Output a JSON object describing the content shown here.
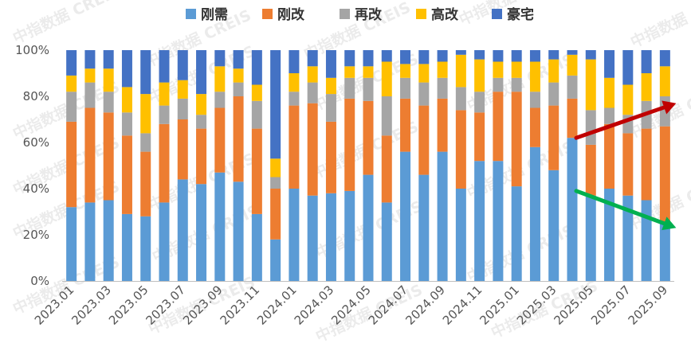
{
  "watermark": "中指数据 CREIS",
  "chart_data": {
    "type": "bar",
    "stacked": true,
    "normalized": true,
    "legend_position": "top",
    "grid": false,
    "ylim": [
      0,
      100
    ],
    "ytick_labels": [
      "0%",
      "20%",
      "40%",
      "60%",
      "80%",
      "100%"
    ],
    "categories": [
      "2023.01",
      "2023.02",
      "2023.03",
      "2023.04",
      "2023.05",
      "2023.06",
      "2023.07",
      "2023.08",
      "2023.09",
      "2023.10",
      "2023.11",
      "2023.12",
      "2024.01",
      "2024.02",
      "2024.03",
      "2024.04",
      "2024.05",
      "2024.06",
      "2024.07",
      "2024.08",
      "2024.09",
      "2024.10",
      "2024.11",
      "2024.12",
      "2025.01",
      "2025.02",
      "2025.03",
      "2025.04",
      "2025.05",
      "2025.06",
      "2025.07",
      "2025.08",
      "2025.09"
    ],
    "xtick_labels": [
      "2023.01",
      "2023.03",
      "2023.05",
      "2023.07",
      "2023.09",
      "2023.11",
      "2024.01",
      "2024.03",
      "2024.05",
      "2024.07",
      "2024.09",
      "2024.11",
      "2025.01",
      "2025.03",
      "2025.05",
      "2025.07",
      "2025.09"
    ],
    "series": [
      {
        "name": "刚需",
        "color": "#5b9bd5",
        "values": [
          32,
          34,
          35,
          29,
          28,
          34,
          44,
          42,
          47,
          43,
          29,
          18,
          40,
          37,
          38,
          39,
          46,
          34,
          56,
          46,
          56,
          40,
          52,
          52,
          41,
          58,
          48,
          62,
          37,
          40,
          37,
          35,
          25
        ]
      },
      {
        "name": "刚改",
        "color": "#ed7d31",
        "values": [
          37,
          41,
          38,
          34,
          28,
          34,
          26,
          24,
          28,
          37,
          37,
          22,
          36,
          40,
          31,
          40,
          32,
          29,
          23,
          30,
          23,
          34,
          21,
          30,
          41,
          17,
          28,
          17,
          22,
          28,
          27,
          31,
          42
        ]
      },
      {
        "name": "再改",
        "color": "#a5a5a5",
        "values": [
          13,
          11,
          9,
          10,
          8,
          8,
          9,
          6,
          7,
          6,
          12,
          5,
          6,
          9,
          12,
          9,
          10,
          17,
          9,
          10,
          9,
          10,
          9,
          6,
          6,
          7,
          10,
          10,
          15,
          7,
          8,
          12,
          13
        ]
      },
      {
        "name": "高改",
        "color": "#ffc000",
        "values": [
          7,
          6,
          10,
          11,
          17,
          10,
          8,
          9,
          11,
          6,
          7,
          8,
          8,
          7,
          7,
          5,
          5,
          15,
          6,
          8,
          7,
          14,
          14,
          7,
          7,
          13,
          10,
          9,
          22,
          13,
          13,
          12,
          13
        ]
      },
      {
        "name": "豪宅",
        "color": "#4472c4",
        "values": [
          11,
          8,
          8,
          16,
          19,
          14,
          13,
          19,
          7,
          8,
          15,
          47,
          10,
          7,
          12,
          7,
          7,
          5,
          6,
          6,
          5,
          2,
          4,
          5,
          5,
          5,
          4,
          2,
          4,
          12,
          15,
          10,
          7
        ]
      }
    ],
    "annotations": [
      {
        "type": "arrow",
        "color": "#c00000",
        "from": {
          "x": "2025.04",
          "y": 62
        },
        "to": {
          "x": "2025.09",
          "y": 77
        }
      },
      {
        "type": "arrow",
        "color": "#00b050",
        "from": {
          "x": "2025.04",
          "y": 39
        },
        "to": {
          "x": "2025.09",
          "y": 23
        }
      }
    ]
  }
}
